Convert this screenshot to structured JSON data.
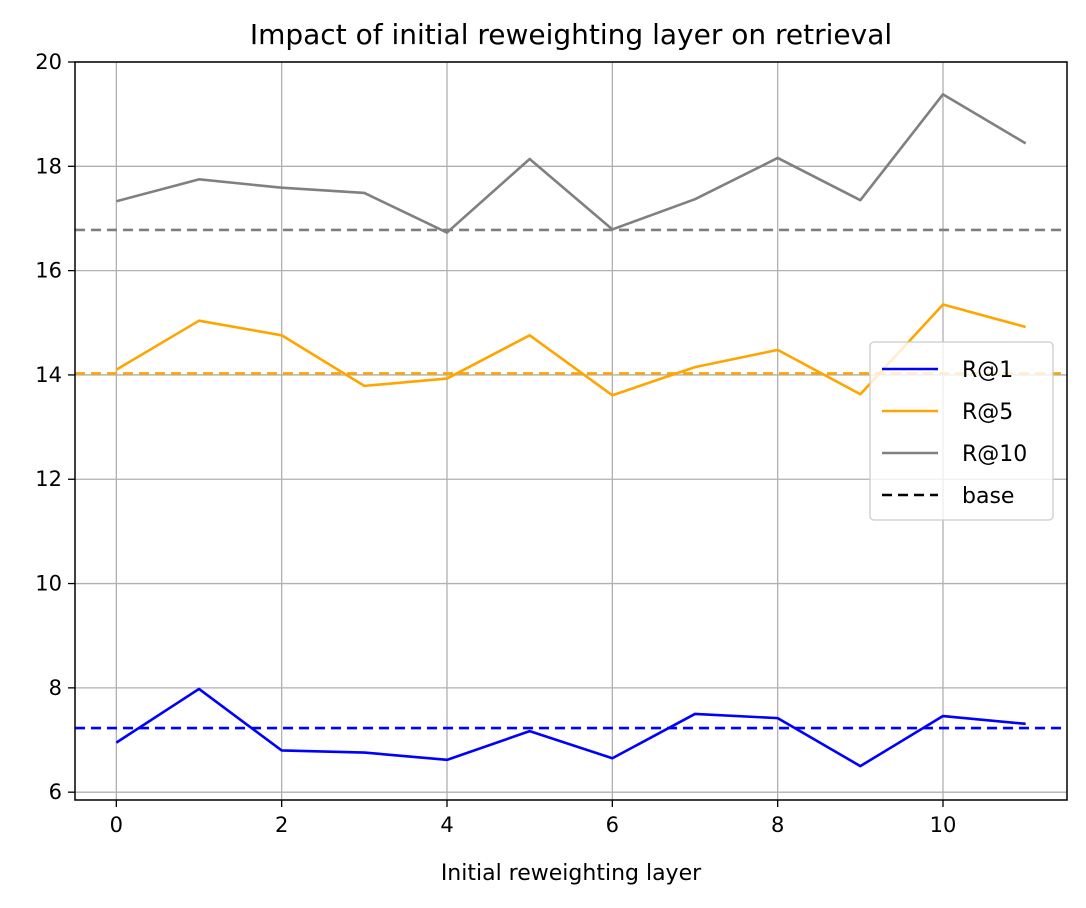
{
  "chart_data": {
    "type": "line",
    "title": "Impact of initial reweighting layer on retrieval",
    "xlabel": "Initial reweighting layer",
    "ylabel": "",
    "xlim": [
      -0.5,
      11.5
    ],
    "ylim": [
      5.85,
      20
    ],
    "xticks": [
      0,
      2,
      4,
      6,
      8,
      10
    ],
    "yticks": [
      6,
      8,
      10,
      12,
      14,
      16,
      18,
      20
    ],
    "grid": true,
    "legend_position": "center-right",
    "x": [
      0,
      1,
      2,
      3,
      4,
      5,
      6,
      7,
      8,
      9,
      10,
      11
    ],
    "series": [
      {
        "name": "R@1",
        "color": "#0000ff",
        "values": [
          6.95,
          7.98,
          6.8,
          6.76,
          6.62,
          7.17,
          6.65,
          7.5,
          7.42,
          6.5,
          7.46,
          7.31
        ]
      },
      {
        "name": "R@5",
        "color": "#ffa500",
        "values": [
          14.1,
          15.04,
          14.76,
          13.79,
          13.93,
          14.76,
          13.61,
          14.15,
          14.48,
          13.63,
          15.35,
          14.92
        ]
      },
      {
        "name": "R@10",
        "color": "#808080",
        "values": [
          17.33,
          17.75,
          17.59,
          17.49,
          16.73,
          18.14,
          16.79,
          17.37,
          18.16,
          17.35,
          19.38,
          18.44
        ]
      }
    ],
    "baselines": [
      {
        "series": "R@1",
        "value": 7.23,
        "color": "#0000ff"
      },
      {
        "series": "R@5",
        "value": 14.03,
        "color": "#ffa500"
      },
      {
        "series": "R@10",
        "value": 16.78,
        "color": "#808080"
      }
    ],
    "legend": [
      {
        "label": "R@1",
        "color": "#0000ff",
        "style": "solid"
      },
      {
        "label": "R@5",
        "color": "#ffa500",
        "style": "solid"
      },
      {
        "label": "R@10",
        "color": "#808080",
        "style": "solid"
      },
      {
        "label": "base",
        "color": "#000000",
        "style": "dashed"
      }
    ]
  }
}
